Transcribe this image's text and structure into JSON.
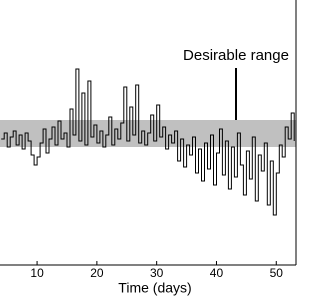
{
  "chart_data": {
    "type": "line",
    "xlabel": "Time (days)",
    "annotation": "Desirable range",
    "x": [
      4,
      4.5,
      5,
      5.5,
      6,
      6.5,
      7,
      7.5,
      8,
      8.5,
      9,
      9.5,
      10,
      10.5,
      11,
      11.5,
      12,
      12.5,
      13,
      13.5,
      14,
      14.5,
      15,
      15.5,
      16,
      16.5,
      17,
      17.5,
      18,
      18.5,
      19,
      19.5,
      20,
      20.5,
      21,
      21.5,
      22,
      22.5,
      23,
      23.5,
      24,
      24.5,
      25,
      25.5,
      26,
      26.5,
      27,
      27.5,
      28,
      28.5,
      29,
      29.5,
      30,
      30.5,
      31,
      31.5,
      32,
      32.5,
      33,
      33.5,
      34,
      34.5,
      35,
      35.5,
      36,
      36.5,
      37,
      37.5,
      38,
      38.5,
      39,
      39.5,
      40,
      40.5,
      41,
      41.5,
      42,
      42.5,
      43,
      43.5,
      44,
      44.5,
      45,
      45.5,
      46,
      46.5,
      47,
      47.5,
      48,
      48.5,
      49,
      49.5,
      50,
      50.5,
      51,
      51.5,
      52,
      52.5,
      53
    ],
    "values": [
      6.3,
      6.6,
      5.9,
      6.4,
      6.7,
      6.0,
      6.5,
      5.8,
      6.6,
      6.2,
      5.5,
      5.0,
      5.4,
      6.1,
      6.8,
      5.6,
      6.3,
      6.9,
      6.0,
      7.2,
      6.3,
      6.6,
      5.9,
      7.8,
      6.5,
      9.8,
      6.2,
      8.6,
      6.0,
      9.2,
      6.4,
      7.0,
      6.1,
      6.7,
      5.9,
      6.5,
      7.4,
      6.0,
      6.8,
      6.3,
      7.1,
      8.9,
      6.2,
      7.9,
      6.5,
      9.0,
      6.1,
      6.7,
      6.0,
      6.6,
      7.5,
      6.2,
      8.0,
      6.4,
      6.9,
      5.8,
      6.5,
      6.1,
      6.7,
      5.2,
      6.3,
      4.9,
      6.0,
      5.5,
      6.4,
      4.6,
      5.8,
      4.2,
      6.1,
      4.8,
      6.5,
      4.0,
      5.6,
      6.8,
      4.5,
      6.2,
      3.8,
      5.9,
      4.4,
      6.6,
      5.0,
      3.5,
      5.7,
      4.3,
      6.4,
      3.2,
      5.5,
      4.7,
      6.1,
      3.0,
      5.2,
      2.5,
      4.6,
      6.0,
      5.4,
      6.9,
      6.3,
      7.6,
      6.2
    ],
    "color": "#000000",
    "band": [
      5.9,
      7.25
    ],
    "band_color": "#c0c0c0",
    "xlim": [
      3.8,
      53.3
    ],
    "ylim": [
      0,
      13.25
    ],
    "xticks": [
      10,
      20,
      30,
      40,
      50
    ]
  }
}
